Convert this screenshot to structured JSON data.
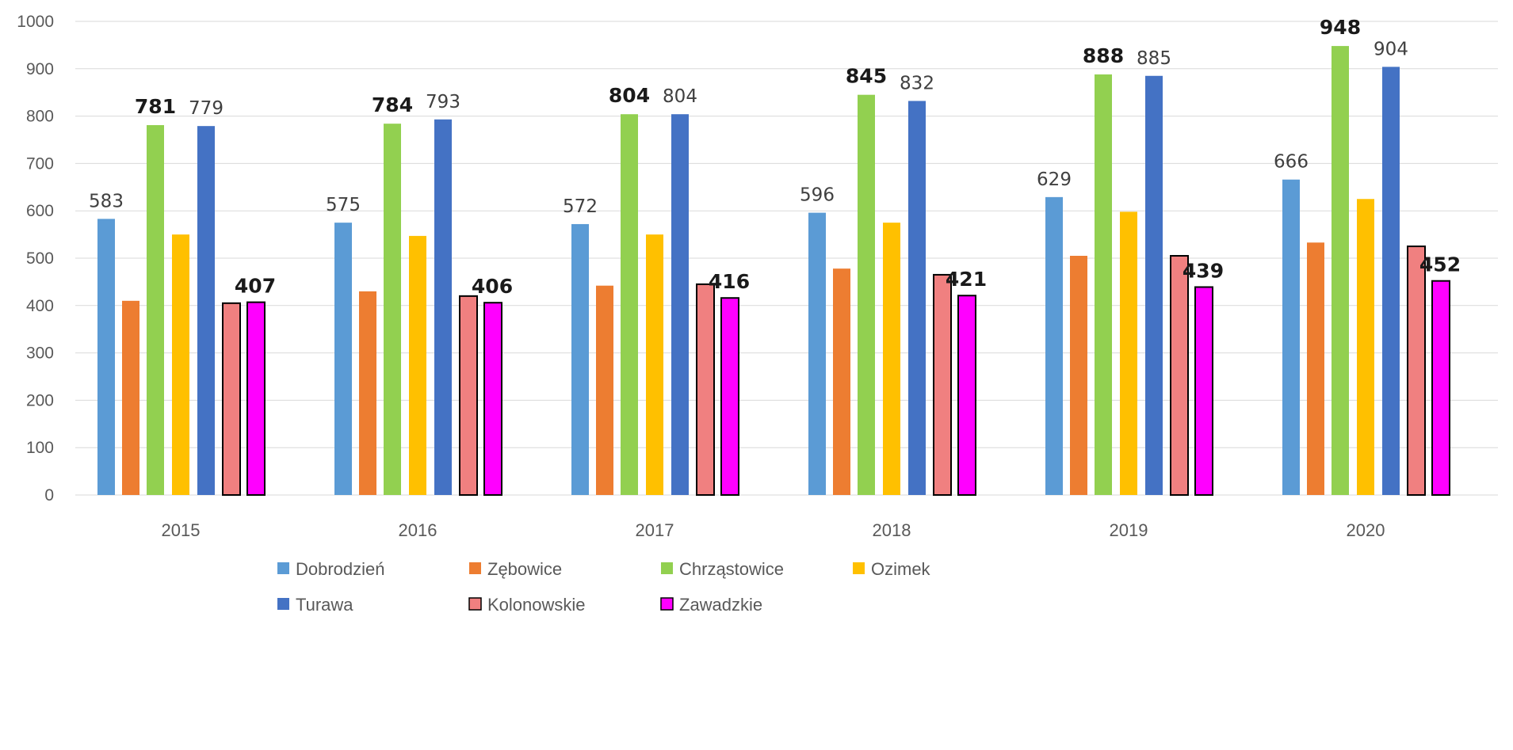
{
  "chart_data": {
    "type": "bar",
    "categories": [
      "2015",
      "2016",
      "2017",
      "2018",
      "2019",
      "2020"
    ],
    "ylim": [
      0,
      1000
    ],
    "yticks": [
      0,
      100,
      200,
      300,
      400,
      500,
      600,
      700,
      800,
      900,
      1000
    ],
    "grid": true,
    "legend_position": "bottom",
    "series": [
      {
        "name": "Dobrodzień",
        "color": "#5B9BD5",
        "values": [
          583,
          575,
          572,
          596,
          629,
          666
        ],
        "labels": [
          "583",
          "575",
          "572",
          "596",
          "629",
          "666"
        ],
        "label_style": "light"
      },
      {
        "name": "Zębowice",
        "color": "#ED7D31",
        "values": [
          410,
          430,
          442,
          478,
          505,
          533
        ],
        "labels": null
      },
      {
        "name": "Chrząstowice",
        "color": "#92D050",
        "values": [
          781,
          784,
          804,
          845,
          888,
          948
        ],
        "labels": [
          "781",
          "784",
          "804",
          "845",
          "888",
          "948"
        ],
        "label_style": "bold"
      },
      {
        "name": "Ozimek",
        "color": "#FFC000",
        "values": [
          550,
          547,
          550,
          575,
          598,
          625
        ],
        "labels": null
      },
      {
        "name": "Turawa",
        "color": "#4472C4",
        "values": [
          779,
          793,
          804,
          832,
          885,
          904
        ],
        "labels": [
          "779",
          "793",
          "804",
          "832",
          "885",
          "904"
        ],
        "label_style": "light"
      },
      {
        "name": "Kolonowskie",
        "color": "#F08080",
        "outline": "#000000",
        "values": [
          405,
          420,
          445,
          465,
          505,
          525
        ],
        "labels": null
      },
      {
        "name": "Zawadzkie",
        "color": "#FF00FF",
        "outline": "#000000",
        "values": [
          407,
          406,
          416,
          421,
          439,
          452
        ],
        "labels": [
          "407",
          "406",
          "416",
          "421",
          "439",
          "452"
        ],
        "label_style": "bold"
      }
    ]
  }
}
